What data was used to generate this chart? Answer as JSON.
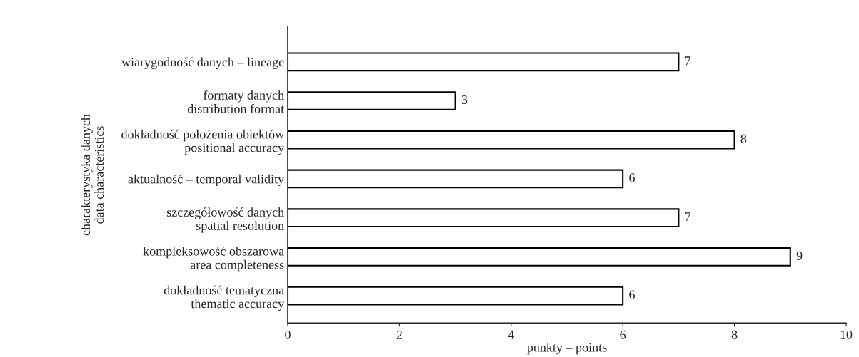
{
  "chart_data": {
    "type": "bar",
    "orientation": "horizontal",
    "categories": [
      "wiarygodność danych – lineage",
      "formaty danych\ndistribution format",
      "dokładność położenia obiektów\npositional accuracy",
      "aktualność – temporal validity",
      "szczegółowość danych\nspatial resolution",
      "kompleksowość obszarowa\narea completeness",
      "dokładność tematyczna\nthematic accuracy"
    ],
    "values": [
      7,
      3,
      8,
      6,
      7,
      9,
      6
    ],
    "color": "#ffffff",
    "xlim": [
      0,
      10
    ],
    "xticks": [
      0,
      2,
      4,
      6,
      8,
      10
    ],
    "xlabel": "punkty – points",
    "ylabel": "charakterystyka danych\ndata characteristics",
    "data_labels": true,
    "grid": false,
    "legend": false
  }
}
